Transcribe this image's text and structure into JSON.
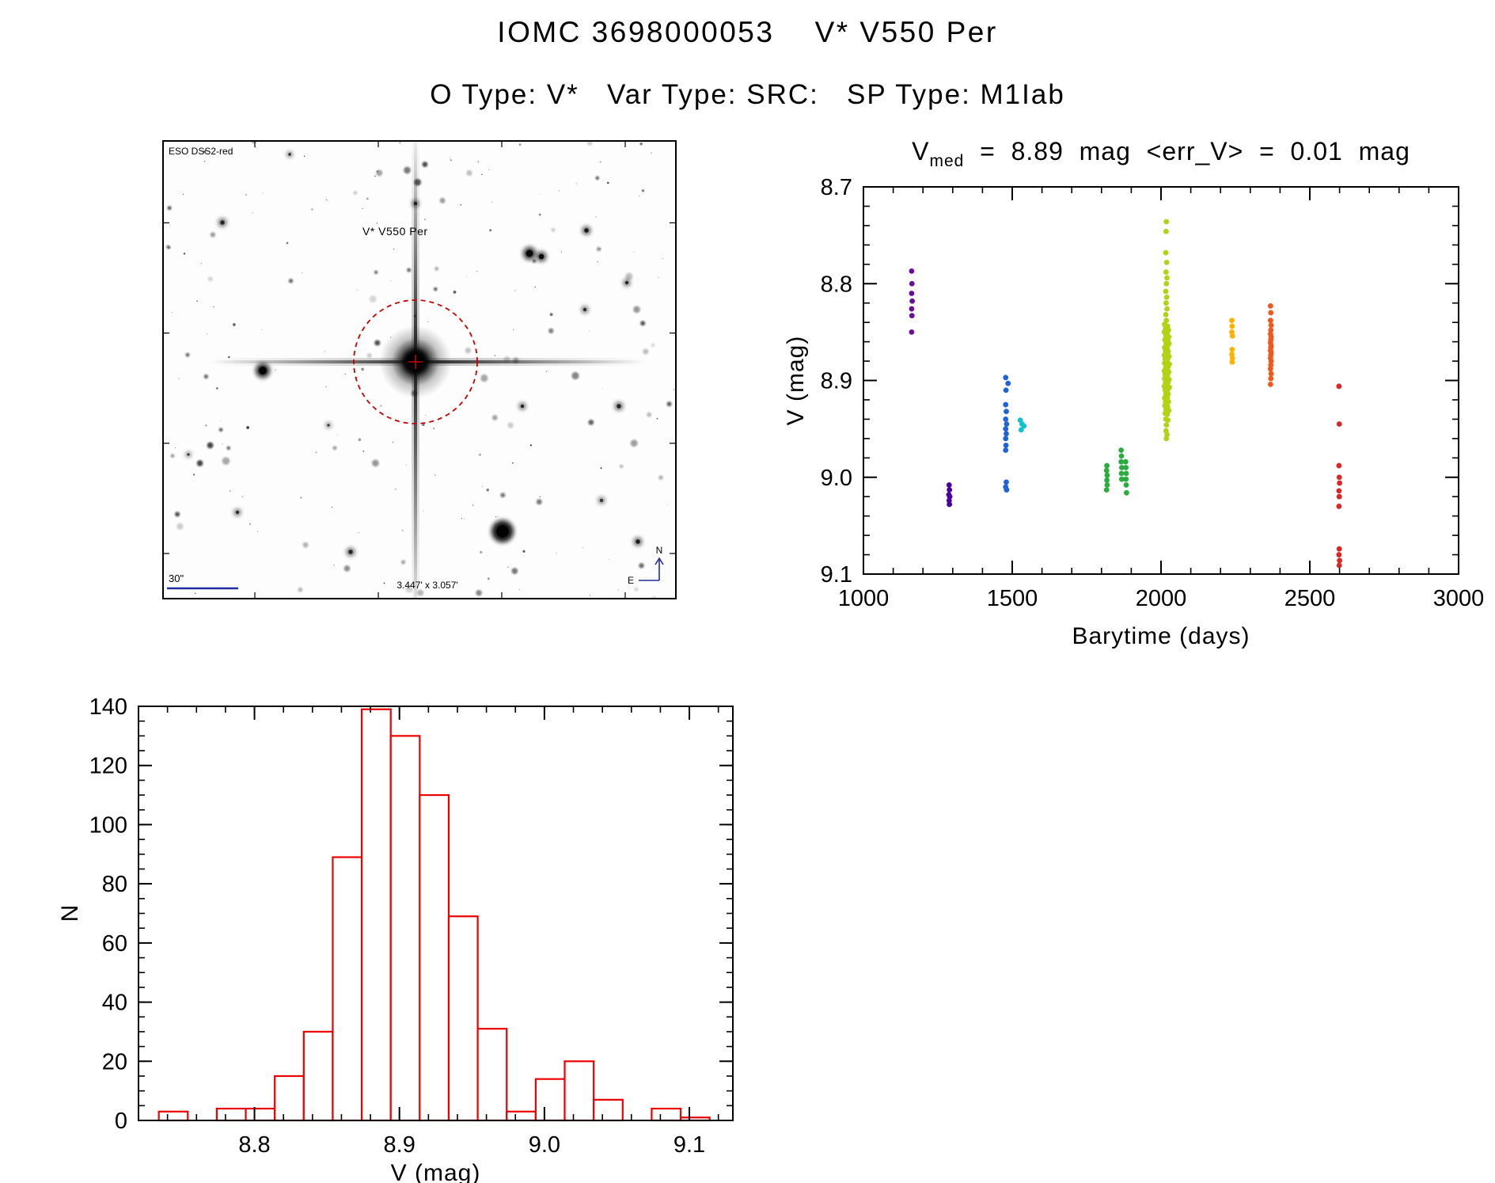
{
  "page": {
    "title": "IOMC 3698000053    V* V550 Per",
    "subtitle": "O Type: V*   Var Type: SRC:   SP Type: M1Iab"
  },
  "finder": {
    "survey_label": "ESO DSS2-red",
    "target_label": "V* V550 Per",
    "scale_label": "30\"",
    "fov_label": "3.447' x 3.057'",
    "compass_north": "N",
    "compass_east": "E",
    "overlay_color": "#c80000",
    "annotation_color": "#1f2da0"
  },
  "chart_data": [
    {
      "id": "lightcurve",
      "type": "scatter",
      "title_prefix": "V",
      "title_sub": "med",
      "title_rest": "  =  8.89  mag  <err_V>  =  0.01  mag",
      "xlabel": "Barytime (days)",
      "ylabel": "V (mag)",
      "xlim": [
        1000,
        3000
      ],
      "ylim": [
        8.7,
        9.1
      ],
      "y_inverted": true,
      "xticks": [
        1000,
        1500,
        2000,
        2500,
        3000
      ],
      "xtick_labels": [
        "1000",
        "1500",
        "2000",
        "2500",
        "3000"
      ],
      "yticks": [
        8.7,
        8.8,
        8.9,
        9.0,
        9.1
      ],
      "ytick_labels": [
        "8.7",
        "8.8",
        "8.9",
        "9.0",
        "9.1"
      ],
      "x_minor": 100,
      "y_minor": 0.02,
      "grid": false,
      "series": [
        {
          "name": "epoch-1-violet",
          "color": "#6a0d9b",
          "points": [
            [
              1162,
              8.787
            ],
            [
              1163,
              8.8
            ],
            [
              1162,
              8.81
            ],
            [
              1164,
              8.818
            ],
            [
              1162,
              8.826
            ],
            [
              1163,
              8.833
            ],
            [
              1162,
              8.85
            ]
          ]
        },
        {
          "name": "epoch-2-indigo",
          "color": "#4a00a0",
          "points": [
            [
              1288,
              9.008
            ],
            [
              1289,
              9.013
            ],
            [
              1287,
              9.018
            ],
            [
              1290,
              9.02
            ],
            [
              1288,
              9.024
            ],
            [
              1289,
              9.028
            ]
          ]
        },
        {
          "name": "epoch-3-blue",
          "color": "#1e64d8",
          "points": [
            [
              1478,
              8.897
            ],
            [
              1486,
              8.903
            ],
            [
              1479,
              8.91
            ],
            [
              1478,
              8.925
            ],
            [
              1480,
              8.932
            ],
            [
              1478,
              8.94
            ],
            [
              1481,
              8.945
            ],
            [
              1478,
              8.95
            ],
            [
              1480,
              8.955
            ],
            [
              1478,
              8.96
            ],
            [
              1479,
              8.967
            ],
            [
              1478,
              8.972
            ],
            [
              1480,
              9.005
            ],
            [
              1478,
              9.01
            ],
            [
              1481,
              9.013
            ]
          ]
        },
        {
          "name": "epoch-4-cyan",
          "color": "#14c2cc",
          "points": [
            [
              1527,
              8.941
            ],
            [
              1533,
              8.945
            ],
            [
              1539,
              8.947
            ],
            [
              1530,
              8.951
            ]
          ]
        },
        {
          "name": "epoch-5-green",
          "color": "#2bac3e",
          "points": [
            [
              1818,
              8.988
            ],
            [
              1817,
              8.993
            ],
            [
              1819,
              8.998
            ],
            [
              1818,
              9.003
            ],
            [
              1819,
              9.008
            ],
            [
              1817,
              9.013
            ],
            [
              1866,
              8.972
            ],
            [
              1867,
              8.978
            ],
            [
              1866,
              8.984
            ],
            [
              1868,
              8.99
            ],
            [
              1867,
              8.996
            ],
            [
              1868,
              9.002
            ],
            [
              1881,
              8.984
            ],
            [
              1882,
              8.99
            ],
            [
              1883,
              8.996
            ],
            [
              1882,
              9.002
            ],
            [
              1883,
              9.008
            ],
            [
              1884,
              9.016
            ]
          ]
        },
        {
          "name": "epoch-6-chartreuse",
          "color": "#b0d313",
          "points": [
            [
              2018,
              8.736
            ],
            [
              2017,
              8.746
            ],
            [
              2016,
              8.768
            ],
            [
              2019,
              8.778
            ],
            [
              2017,
              8.788
            ],
            [
              2020,
              8.794
            ],
            [
              2018,
              8.8
            ],
            [
              2016,
              8.808
            ],
            [
              2019,
              8.814
            ],
            [
              2017,
              8.82
            ],
            [
              2020,
              8.826
            ],
            [
              2016,
              8.832
            ],
            [
              2018,
              8.838
            ],
            [
              2012,
              8.842
            ],
            [
              2022,
              8.844
            ],
            [
              2015,
              8.846
            ],
            [
              2025,
              8.848
            ],
            [
              2011,
              8.85
            ],
            [
              2020,
              8.851
            ],
            [
              2016,
              8.854
            ],
            [
              2026,
              8.855
            ],
            [
              2013,
              8.858
            ],
            [
              2023,
              8.859
            ],
            [
              2017,
              8.862
            ],
            [
              2027,
              8.862
            ],
            [
              2012,
              8.866
            ],
            [
              2021,
              8.866
            ],
            [
              2015,
              8.87
            ],
            [
              2024,
              8.87
            ],
            [
              2011,
              8.874
            ],
            [
              2019,
              8.874
            ],
            [
              2027,
              8.875
            ],
            [
              2014,
              8.878
            ],
            [
              2022,
              8.878
            ],
            [
              2012,
              8.882
            ],
            [
              2020,
              8.882
            ],
            [
              2028,
              8.883
            ],
            [
              2016,
              8.886
            ],
            [
              2024,
              8.886
            ],
            [
              2011,
              8.89
            ],
            [
              2018,
              8.89
            ],
            [
              2026,
              8.891
            ],
            [
              2014,
              8.894
            ],
            [
              2022,
              8.894
            ],
            [
              2012,
              8.898
            ],
            [
              2019,
              8.898
            ],
            [
              2027,
              8.899
            ],
            [
              2015,
              8.902
            ],
            [
              2023,
              8.902
            ],
            [
              2011,
              8.906
            ],
            [
              2020,
              8.906
            ],
            [
              2028,
              8.907
            ],
            [
              2014,
              8.91
            ],
            [
              2022,
              8.91
            ],
            [
              2016,
              8.914
            ],
            [
              2024,
              8.914
            ],
            [
              2012,
              8.918
            ],
            [
              2021,
              8.918
            ],
            [
              2015,
              8.922
            ],
            [
              2025,
              8.922
            ],
            [
              2013,
              8.926
            ],
            [
              2022,
              8.927
            ],
            [
              2017,
              8.93
            ],
            [
              2026,
              8.931
            ],
            [
              2014,
              8.934
            ],
            [
              2021,
              8.935
            ],
            [
              2016,
              8.94
            ],
            [
              2023,
              8.941
            ],
            [
              2018,
              8.946
            ],
            [
              2017,
              8.952
            ],
            [
              2020,
              8.956
            ],
            [
              2018,
              8.96
            ]
          ]
        },
        {
          "name": "epoch-7-amber",
          "color": "#ffb200",
          "points": [
            [
              2238,
              8.838
            ],
            [
              2239,
              8.844
            ],
            [
              2238,
              8.85
            ],
            [
              2240,
              8.854
            ],
            [
              2239,
              8.868
            ],
            [
              2238,
              8.873
            ],
            [
              2240,
              8.877
            ],
            [
              2239,
              8.881
            ]
          ]
        },
        {
          "name": "epoch-8-orange",
          "color": "#f2571c",
          "points": [
            [
              2368,
              8.823
            ],
            [
              2369,
              8.83
            ],
            [
              2368,
              8.838
            ],
            [
              2370,
              8.843
            ],
            [
              2369,
              8.848
            ],
            [
              2368,
              8.852
            ],
            [
              2370,
              8.855
            ],
            [
              2369,
              8.858
            ],
            [
              2368,
              8.861
            ],
            [
              2370,
              8.864
            ],
            [
              2369,
              8.866
            ],
            [
              2368,
              8.869
            ],
            [
              2370,
              8.871
            ],
            [
              2369,
              8.874
            ],
            [
              2368,
              8.877
            ],
            [
              2370,
              8.88
            ],
            [
              2369,
              8.884
            ],
            [
              2368,
              8.888
            ],
            [
              2370,
              8.893
            ],
            [
              2369,
              8.898
            ],
            [
              2368,
              8.904
            ]
          ]
        },
        {
          "name": "epoch-9-red",
          "color": "#e02424",
          "points": [
            [
              2598,
              8.906
            ],
            [
              2599,
              8.945
            ],
            [
              2598,
              8.988
            ],
            [
              2599,
              9.0
            ],
            [
              2600,
              9.006
            ],
            [
              2598,
              9.014
            ],
            [
              2599,
              9.02
            ],
            [
              2598,
              9.03
            ],
            [
              2599,
              9.074
            ],
            [
              2598,
              9.08
            ],
            [
              2600,
              9.086
            ],
            [
              2599,
              9.091
            ]
          ]
        }
      ]
    },
    {
      "id": "histogram",
      "type": "histogram",
      "xlabel": "V (mag)",
      "ylabel": "N",
      "xlim": [
        8.72,
        9.13
      ],
      "ylim": [
        0,
        140
      ],
      "xticks": [
        8.8,
        8.9,
        9.0,
        9.1
      ],
      "xtick_labels": [
        "8.8",
        "8.9",
        "9.0",
        "9.1"
      ],
      "yticks": [
        0,
        20,
        40,
        60,
        80,
        100,
        120,
        140
      ],
      "ytick_labels": [
        "0",
        "20",
        "40",
        "60",
        "80",
        "100",
        "120",
        "140"
      ],
      "x_minor": 0.02,
      "y_minor": 5,
      "bar_color": "#ee0000",
      "bin_start": 8.734,
      "bin_width": 0.02,
      "counts": [
        3,
        0,
        4,
        4,
        15,
        30,
        89,
        139,
        130,
        110,
        69,
        31,
        3,
        14,
        20,
        7,
        0,
        4,
        1
      ]
    }
  ]
}
